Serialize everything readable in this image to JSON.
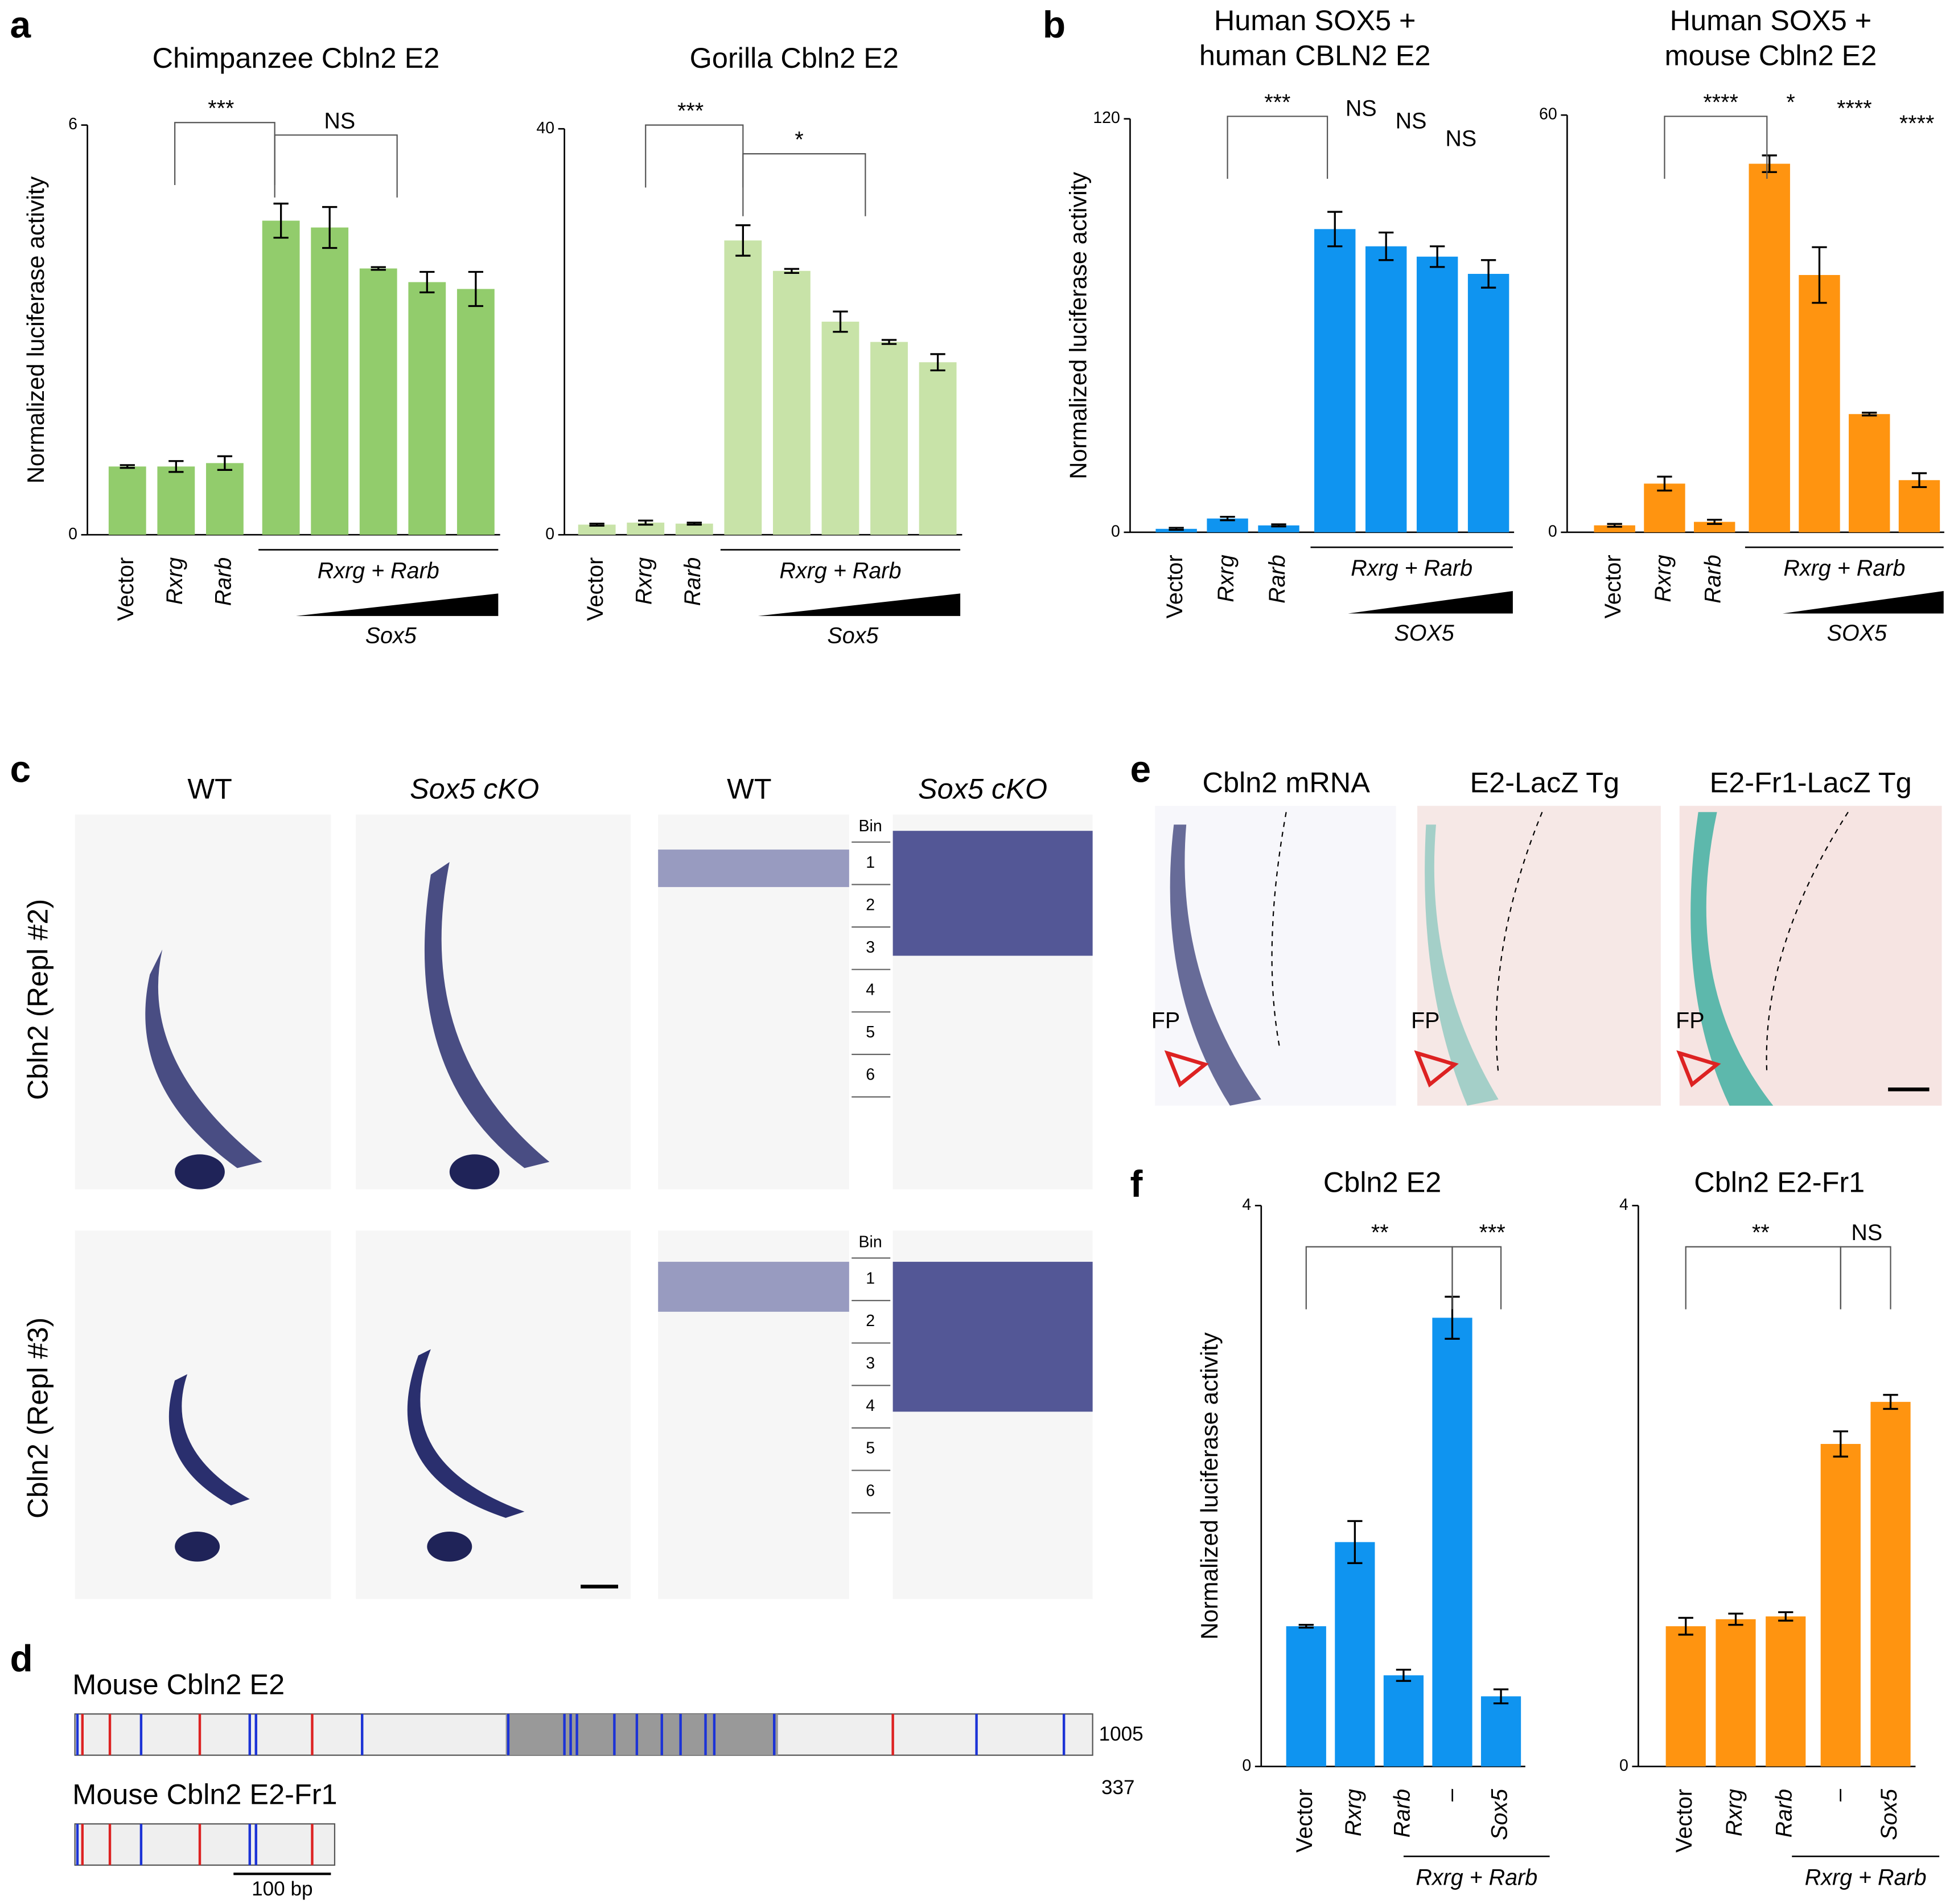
{
  "chart_data": [
    {
      "type": "bar",
      "title": [
        "Chimpanzee Cbln2 E2"
      ],
      "y_label": "Normalized luciferase activity",
      "categories": [
        "Vector",
        "Rxrg",
        "Rarb",
        null,
        null,
        null,
        null,
        null
      ],
      "values": [
        1.0,
        1.0,
        1.05,
        4.6,
        4.5,
        3.9,
        3.7,
        3.6
      ],
      "errors": [
        0.02,
        0.08,
        0.1,
        0.25,
        0.3,
        0.02,
        0.15,
        0.25
      ],
      "color": "#92cc6c",
      "ylim": [
        0,
        6
      ],
      "yticks": [
        0,
        6
      ],
      "group_label": "Rxrg + Rarb",
      "gradient_label": "Sox5",
      "annotations": [
        "***",
        "NS"
      ]
    },
    {
      "type": "bar",
      "title": [
        "Gorilla Cbln2 E2"
      ],
      "categories": [
        "Vector",
        "Rxrg",
        "Rarb",
        null,
        null,
        null,
        null,
        null
      ],
      "values": [
        1.0,
        1.2,
        1.1,
        29,
        26,
        21,
        19,
        17
      ],
      "errors": [
        0.1,
        0.2,
        0.1,
        1.5,
        0.2,
        1.0,
        0.2,
        0.8
      ],
      "color": "#c8e3a8",
      "ylim": [
        0,
        40
      ],
      "yticks": [
        0,
        40
      ],
      "group_label": "Rxrg + Rarb",
      "gradient_label": "Sox5",
      "annotations": [
        "***",
        "*"
      ]
    },
    {
      "type": "bar",
      "title": [
        "Human SOX5 +",
        "human CBLN2 E2"
      ],
      "y_label": "Normalized luciferase activity",
      "categories": [
        "Vector",
        "Rxrg",
        "Rarb",
        null,
        null,
        null,
        null
      ],
      "values": [
        1,
        4,
        2,
        88,
        83,
        80,
        75
      ],
      "errors": [
        0.3,
        0.5,
        0.3,
        5,
        4,
        3,
        4
      ],
      "color": "#0f94f0",
      "ylim": [
        0,
        120
      ],
      "yticks": [
        0,
        120
      ],
      "group_label": "Rxrg + Rarb",
      "gradient_label": "SOX5",
      "annotations": [
        "***",
        "NS",
        "NS",
        "NS"
      ]
    },
    {
      "type": "bar",
      "title": [
        "Human SOX5 +",
        "mouse Cbln2 E2"
      ],
      "categories": [
        "Vector",
        "Rxrg",
        "Rarb",
        null,
        null,
        null,
        null
      ],
      "values": [
        1,
        7,
        1.5,
        53,
        37,
        17,
        7.5
      ],
      "errors": [
        0.2,
        1,
        0.3,
        1.2,
        4,
        0.2,
        1
      ],
      "color": "#ff9410",
      "ylim": [
        0,
        60
      ],
      "yticks": [
        0,
        60
      ],
      "group_label": "Rxrg + Rarb",
      "gradient_label": "SOX5",
      "annotations": [
        "****",
        "*",
        "****",
        "****"
      ]
    },
    {
      "type": "bar",
      "title": [
        "Cbln2 E2"
      ],
      "y_label": "Normalized luciferase activity",
      "categories": [
        "Vector",
        "Rxrg",
        "Rarb",
        "–",
        "Sox5"
      ],
      "values": [
        1.0,
        1.6,
        0.65,
        3.2,
        0.5
      ],
      "errors": [
        0.01,
        0.15,
        0.04,
        0.15,
        0.05
      ],
      "color": "#0f94f0",
      "ylim": [
        0,
        4
      ],
      "yticks": [
        0,
        4
      ],
      "group_label": "Rxrg + Rarb",
      "annotations": [
        "**",
        "***"
      ]
    },
    {
      "type": "bar",
      "title": [
        "Cbln2 E2-Fr1"
      ],
      "categories": [
        "Vector",
        "Rxrg",
        "Rarb",
        "–",
        "Sox5"
      ],
      "values": [
        1.0,
        1.05,
        1.07,
        2.3,
        2.6
      ],
      "errors": [
        0.06,
        0.04,
        0.03,
        0.09,
        0.05
      ],
      "color": "#ff9410",
      "ylim": [
        0,
        4
      ],
      "yticks": [
        0,
        4
      ],
      "group_label": "Rxrg + Rarb",
      "annotations": [
        "**",
        "NS"
      ]
    }
  ],
  "figure": {
    "panel_labels": [
      "a",
      "b",
      "c",
      "d",
      "e",
      "f"
    ],
    "c": {
      "columns": [
        "WT",
        "Sox5 cKO",
        "WT",
        "Sox5 cKO"
      ],
      "rows": [
        "Cbln2 (Repl #2)",
        "Cbln2 (Repl #3)"
      ],
      "bin_header": "Bin",
      "bins": [
        "1",
        "2",
        "3",
        "4",
        "5",
        "6"
      ]
    },
    "d": {
      "constructs": [
        {
          "label": "Mouse Cbln2 E2",
          "length": 1005
        },
        {
          "label": "Mouse Cbln2 E2-Fr1",
          "length": 337
        }
      ],
      "scale_label": "100 bp"
    },
    "e": {
      "columns": [
        "Cbln2 mRNA",
        "E2-LacZ Tg",
        "E2-Fr1-LacZ Tg"
      ],
      "marker": "FP"
    }
  }
}
